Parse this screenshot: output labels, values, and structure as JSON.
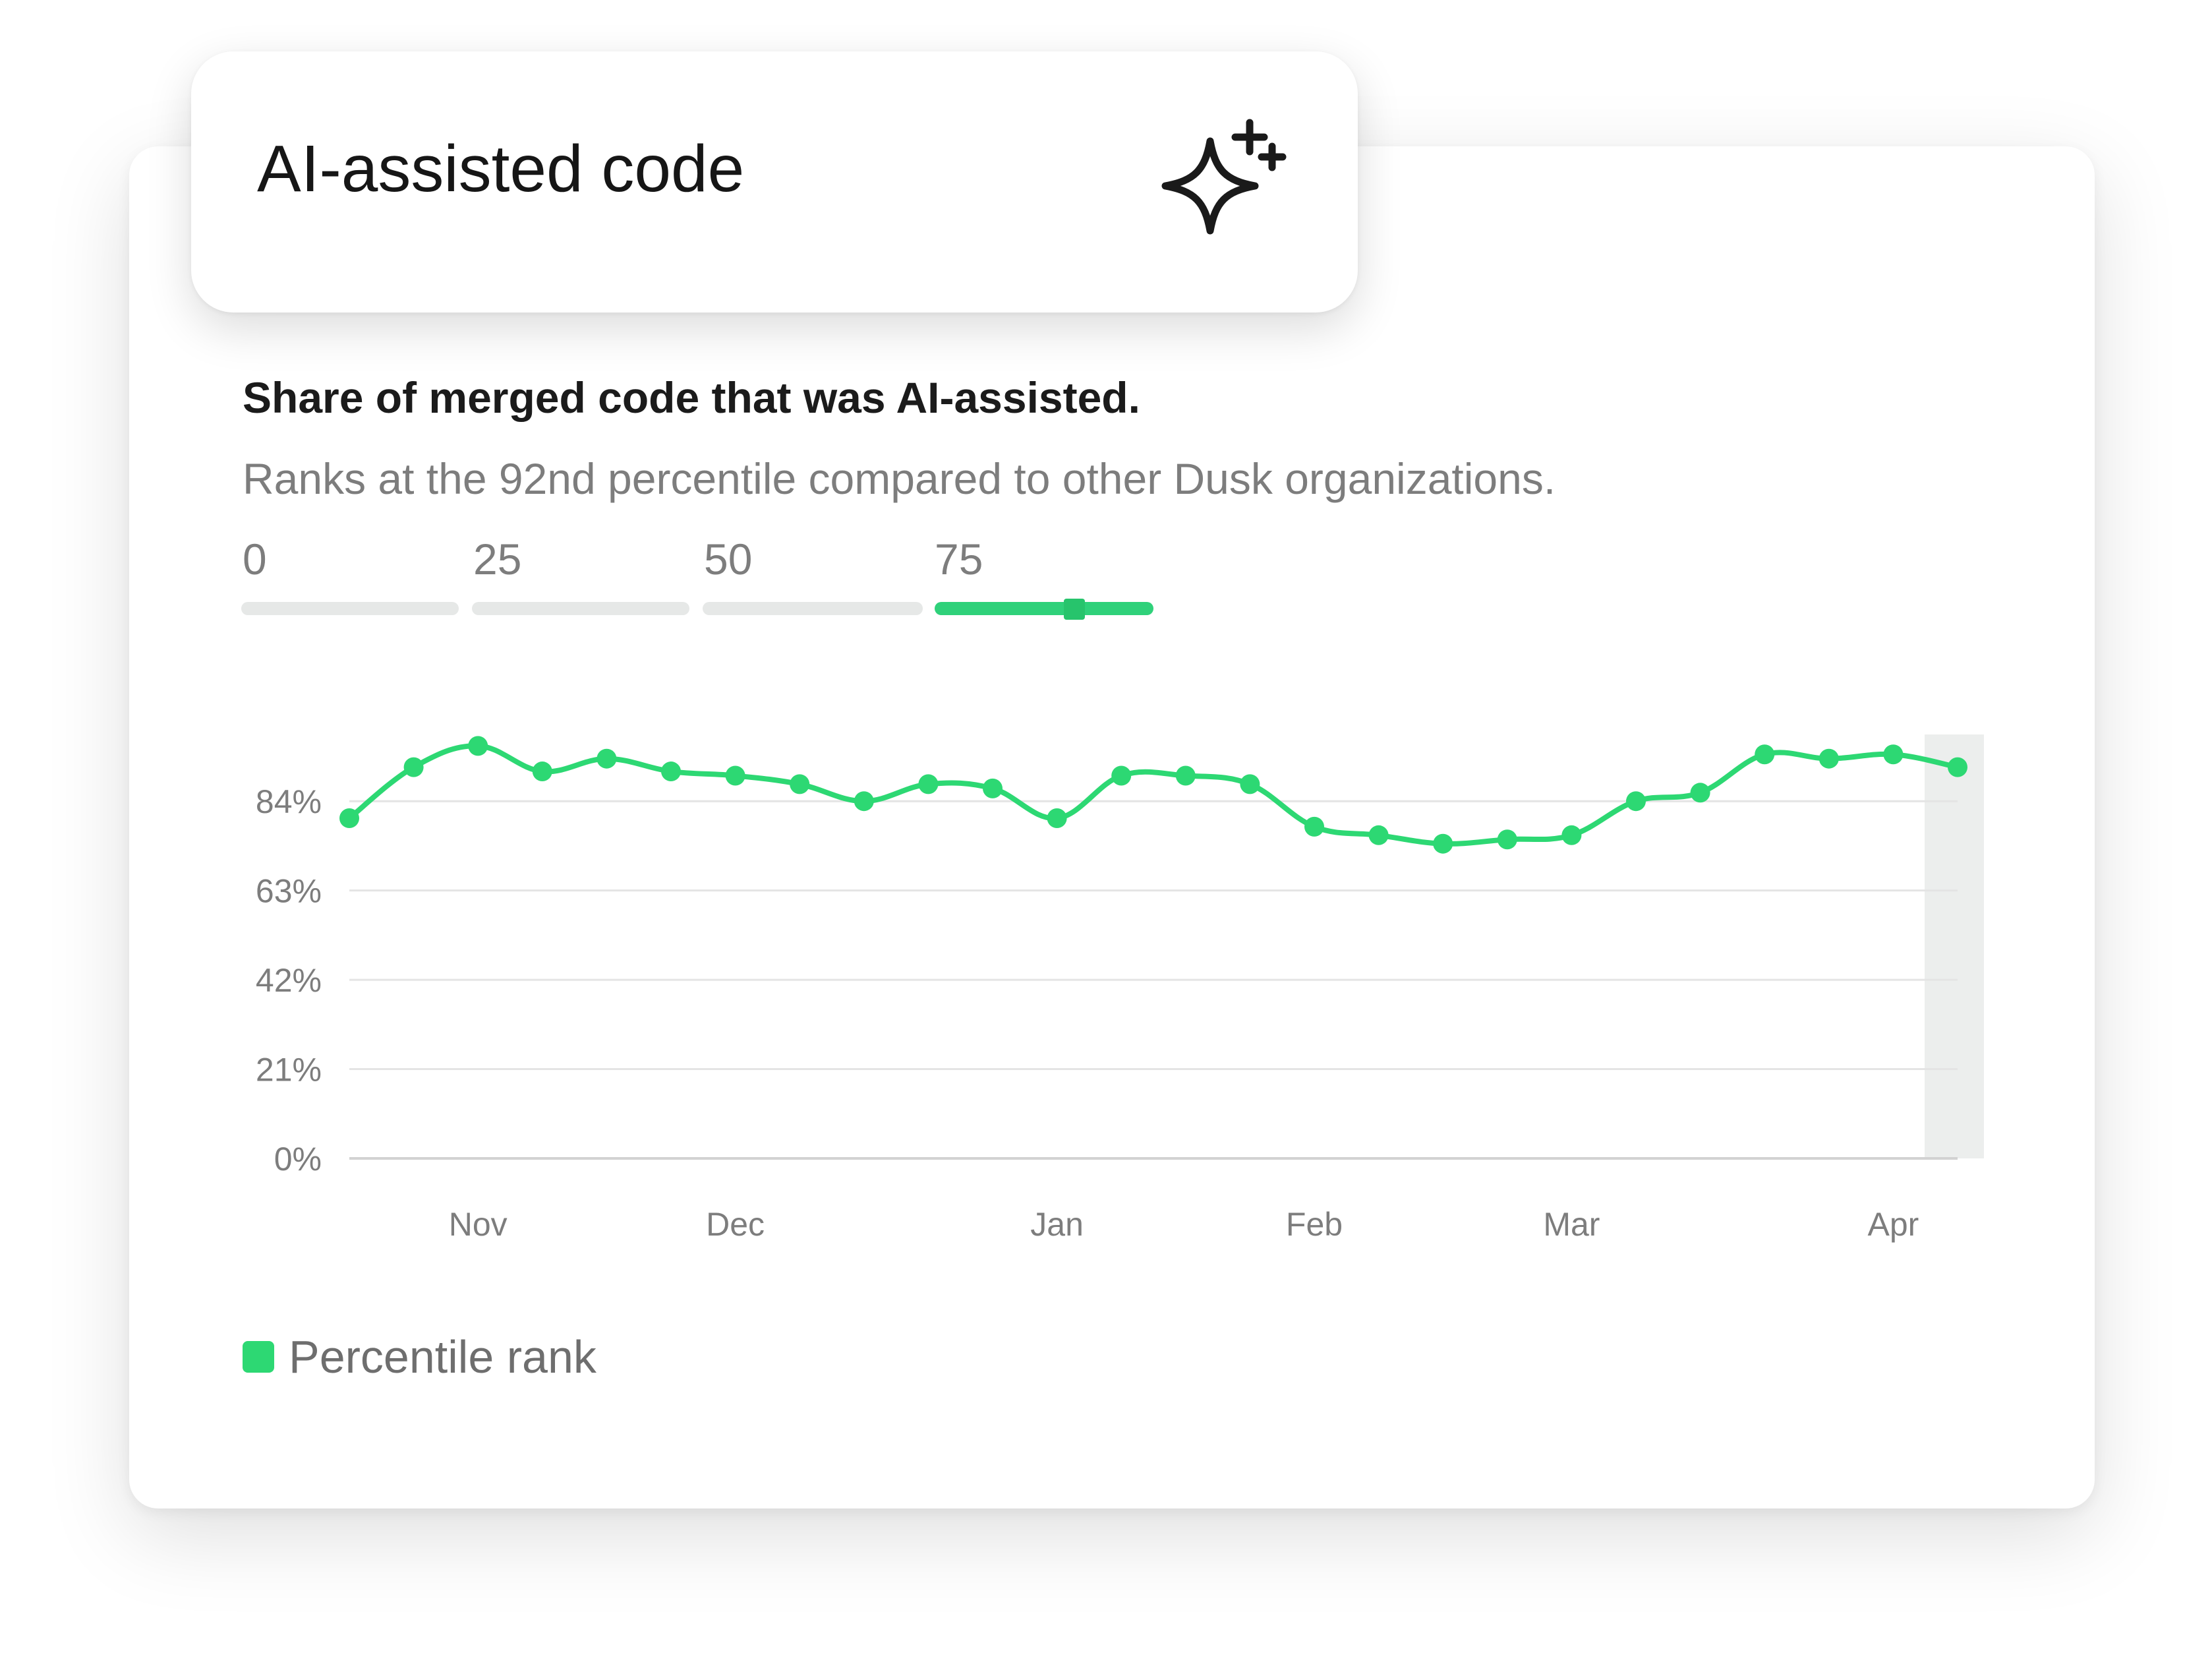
{
  "header": {
    "title": "AI-assisted code",
    "icon": "sparkle-icon"
  },
  "chart_heading": "Share of merged code that was AI-assisted.",
  "chart_subheading": "Ranks at the 92nd percentile compared to other Dusk organizations.",
  "percentile_scale": {
    "labels": [
      "0",
      "25",
      "50",
      "75"
    ],
    "active_segment": "75",
    "value": 92
  },
  "colors": {
    "series": "#2dd873",
    "grid": "#e4e4e4",
    "muted_text": "#7d7d7d",
    "highlight": "#eceeed"
  },
  "chart_data": {
    "type": "line",
    "title": "",
    "xlabel": "",
    "ylabel": "",
    "ylim": [
      0,
      100
    ],
    "y_ticks": [
      0,
      21,
      42,
      63,
      84
    ],
    "y_tick_labels": [
      "0%",
      "21%",
      "42%",
      "63%",
      "84%"
    ],
    "x_tick_labels": [
      "Nov",
      "Dec",
      "Jan",
      "Feb",
      "Mar",
      "Apr"
    ],
    "x_tick_indices": [
      2,
      6,
      11,
      15,
      19,
      24
    ],
    "highlight_last_point": true,
    "legend_position": "bottom-left",
    "grid": true,
    "series": [
      {
        "name": "Percentile rank",
        "values": [
          80,
          92,
          97,
          91,
          94,
          91,
          90,
          88,
          84,
          88,
          87,
          80,
          90,
          90,
          88,
          78,
          76,
          74,
          75,
          76,
          84,
          86,
          95,
          94,
          95,
          92
        ]
      }
    ]
  }
}
